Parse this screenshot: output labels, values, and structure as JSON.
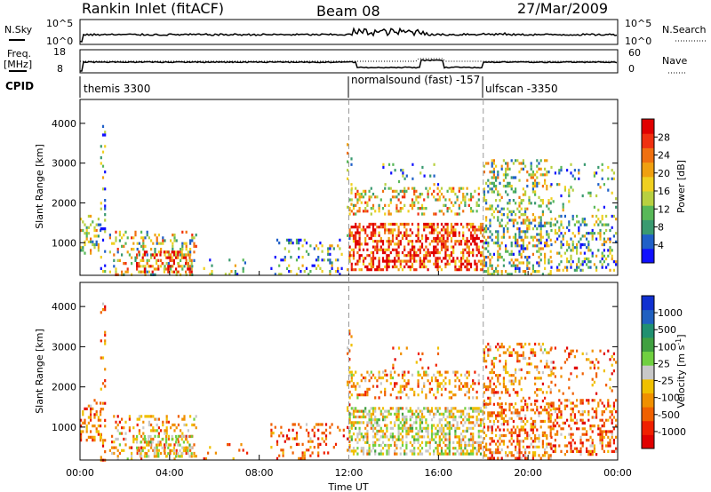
{
  "header": {
    "station": "Rankin Inlet (fitACF)",
    "beam": "Beam 08",
    "date": "27/Mar/2009"
  },
  "sky_panel": {
    "left_label": "N.Sky",
    "right_label": "N.Search",
    "left_ticks": [
      "10^5",
      "10^0"
    ],
    "right_ticks": [
      "10^5",
      "10^0"
    ]
  },
  "freq_panel": {
    "left_label": "Freq.",
    "left_unit": "[MHz]",
    "right_label": "Nave",
    "left_ticks": [
      "18",
      "8"
    ],
    "right_ticks": [
      "60",
      "0"
    ]
  },
  "cpid_panel": {
    "label": "CPID",
    "segments": [
      {
        "name": "themis 3300",
        "start_hour": 0
      },
      {
        "name": "normalsound (fast) -157",
        "start_hour": 12
      },
      {
        "name": "ulfscan -3350",
        "start_hour": 18
      }
    ]
  },
  "chart_data": [
    {
      "type": "heatmap",
      "name": "power",
      "ylabel": "Slant Range [km]",
      "x_range_hours": [
        0,
        24
      ],
      "ylim_km": [
        180,
        4600
      ],
      "yticks": [
        "1000",
        "2000",
        "3000",
        "4000"
      ],
      "colorbar": {
        "label": "Power [dB]",
        "ticks": [
          "4",
          "8",
          "12",
          "16",
          "20",
          "24",
          "28"
        ],
        "colors": [
          "#1010ff",
          "#2060c8",
          "#3a9a70",
          "#58b858",
          "#b8d040",
          "#f0d020",
          "#f0a010",
          "#f07010",
          "#f03010",
          "#e00000"
        ]
      }
    },
    {
      "type": "heatmap",
      "name": "velocity",
      "ylabel": "Slant Range [km]",
      "xlabel": "Time UT",
      "x_range_hours": [
        0,
        24
      ],
      "ylim_km": [
        180,
        4600
      ],
      "yticks": [
        "1000",
        "2000",
        "3000",
        "4000"
      ],
      "xticks": [
        "00:00",
        "04:00",
        "08:00",
        "12:00",
        "16:00",
        "20:00",
        "00:00"
      ],
      "colorbar": {
        "label": "Velocity [m s^-1]",
        "ticks": [
          "1000",
          "500",
          "100",
          "25",
          "-25",
          "-100",
          "-500",
          "-1000"
        ],
        "colors": [
          "#1030d0",
          "#2060c0",
          "#209070",
          "#40a040",
          "#70d040",
          "#c8c8c8",
          "#f0c000",
          "#f09000",
          "#f06000",
          "#f02000",
          "#e00000"
        ]
      }
    }
  ]
}
